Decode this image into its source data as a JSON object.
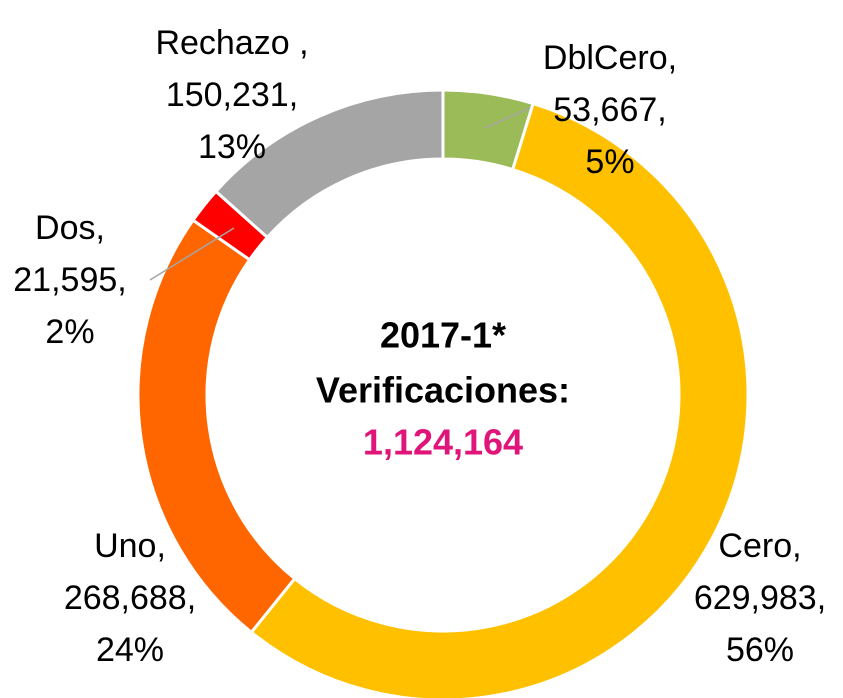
{
  "chart_data": {
    "type": "donut",
    "categories": [
      "DblCero,",
      "Cero,",
      "Uno,",
      "Dos,",
      "Rechazo ,"
    ],
    "values": [
      53667,
      629983,
      268688,
      21595,
      150231
    ],
    "value_labels": [
      "53,667,",
      "629,983,",
      "268,688,",
      "21,595,",
      "150,231,"
    ],
    "percent_labels": [
      "5%",
      "56%",
      "24%",
      "2%",
      "13%"
    ],
    "colors": [
      "#9bbb59",
      "#ffc000",
      "#ff6600",
      "#ff0000",
      "#a5a5a5"
    ],
    "center_text": [
      "2017-1*",
      "Verificaciones:",
      "1,124,164"
    ]
  }
}
